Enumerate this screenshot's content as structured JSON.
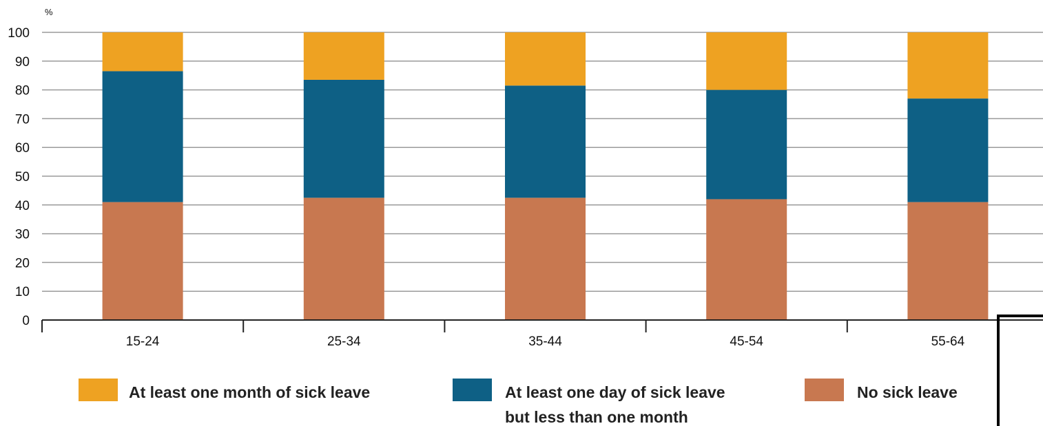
{
  "chart_data": {
    "type": "bar",
    "stacked": true,
    "unit_label": "%",
    "categories": [
      "15-24",
      "25-34",
      "35-44",
      "45-54",
      "55-64"
    ],
    "series": [
      {
        "name": "No sick leave",
        "color": "#C87850",
        "values": [
          41,
          42.5,
          42.5,
          42,
          41
        ]
      },
      {
        "name": "At least one day of sick leave but less than one month",
        "name_lines": [
          "At least one day of sick leave",
          "but less than one month"
        ],
        "color": "#0E6085",
        "values": [
          45.5,
          41,
          39,
          38,
          36
        ]
      },
      {
        "name": "At least one month of sick leave",
        "color": "#EEA222",
        "values": [
          13.5,
          16.5,
          18.5,
          20,
          23
        ]
      }
    ],
    "ylim": [
      0,
      100
    ],
    "yticks": [
      0,
      10,
      20,
      30,
      40,
      50,
      60,
      70,
      80,
      90,
      100
    ],
    "grid": true,
    "legend_placement": "bottom",
    "legend_order": [
      2,
      1,
      0
    ]
  }
}
